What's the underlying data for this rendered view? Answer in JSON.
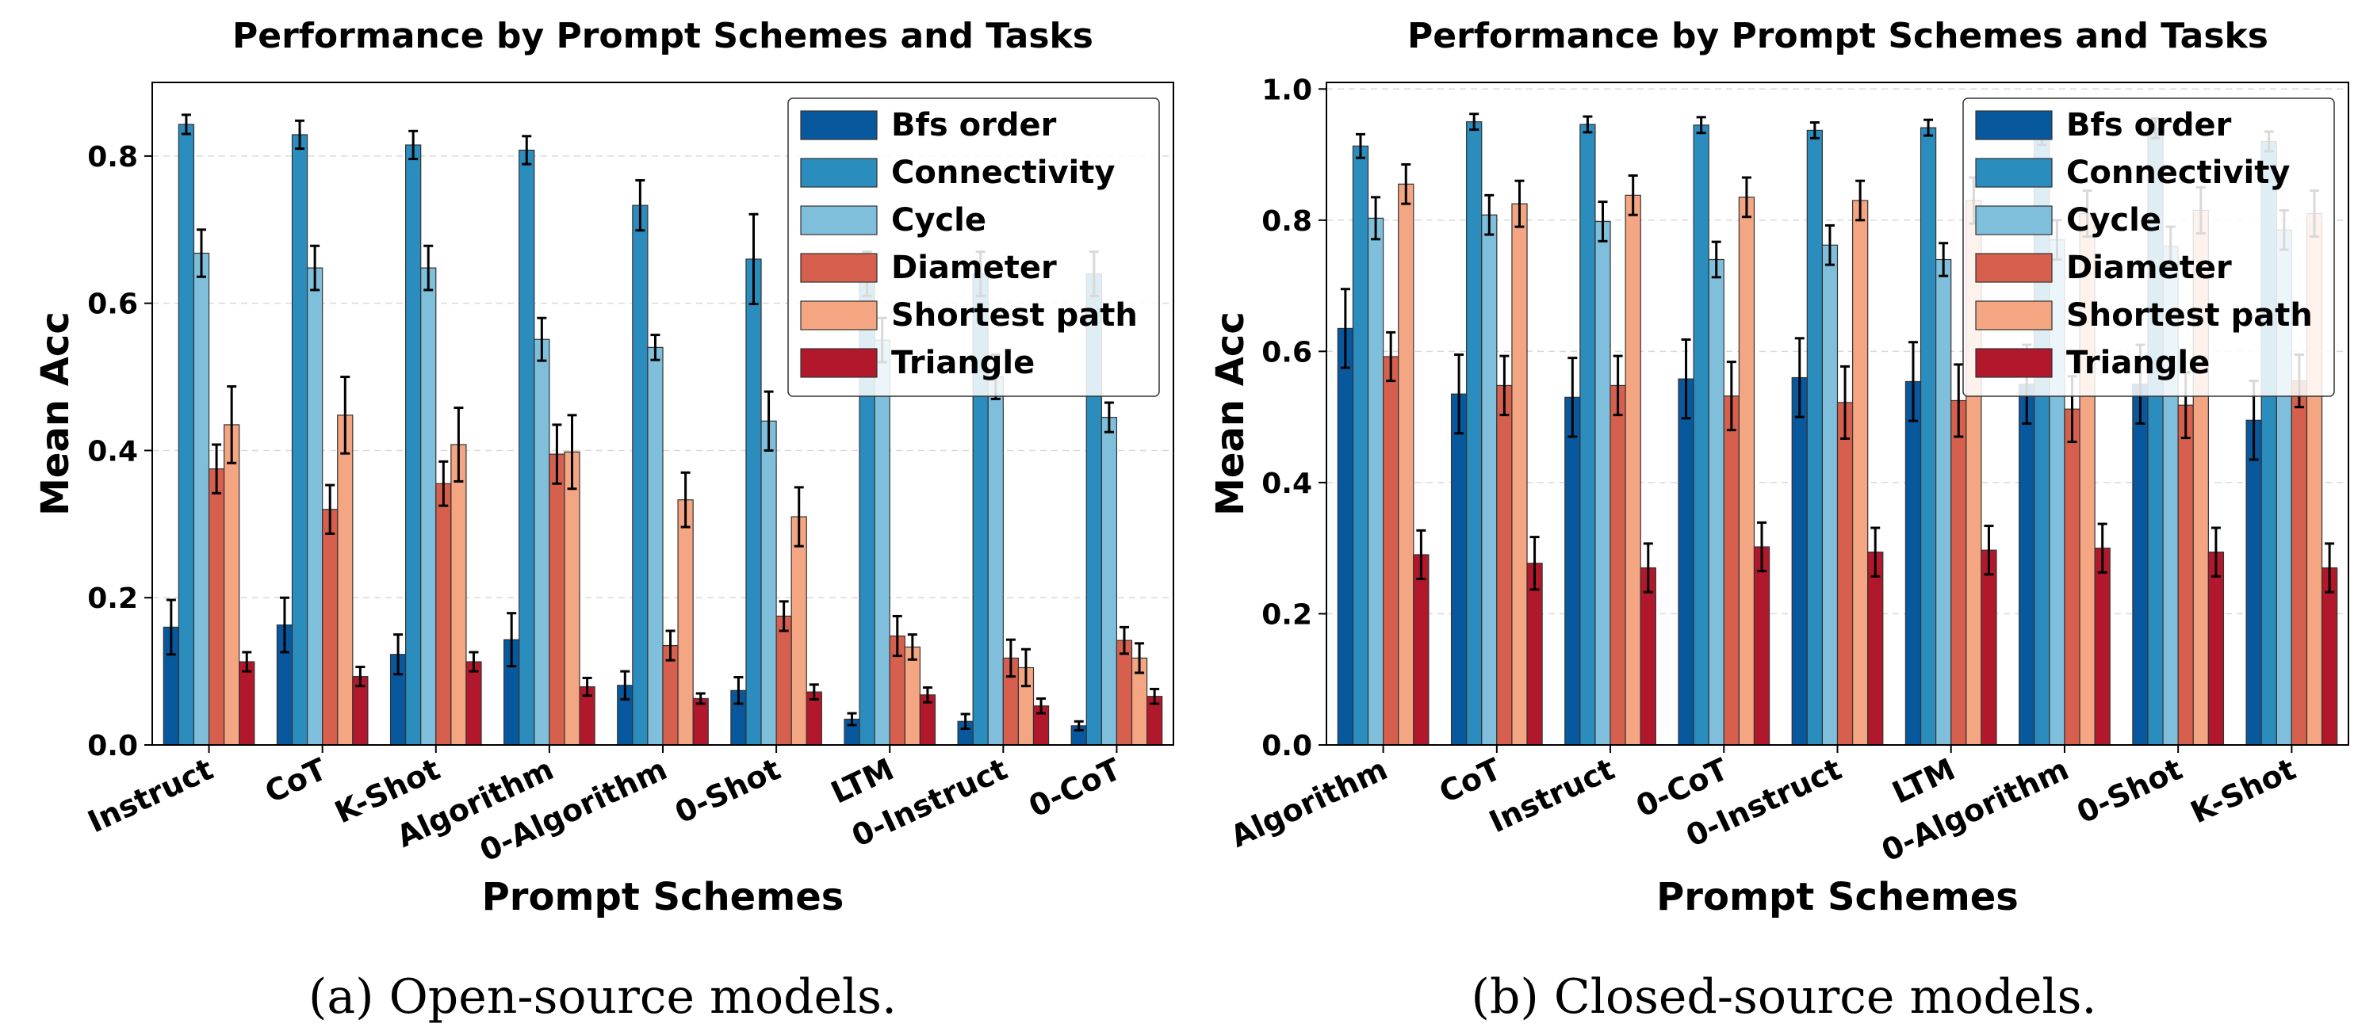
{
  "chart_data": [
    {
      "type": "bar",
      "title": "Performance by Prompt Schemes and Tasks",
      "xlabel": "Prompt Schemes",
      "ylabel": "Mean Acc",
      "ylim": [
        0,
        0.9
      ],
      "yticks": [
        0.0,
        0.2,
        0.4,
        0.6,
        0.8
      ],
      "ytick_labels": [
        "0.0",
        "0.2",
        "0.4",
        "0.6",
        "0.8"
      ],
      "grid": "horizontal dashed",
      "legend_position": "top-right",
      "caption": "(a) Open-source models.",
      "categories": [
        "Instruct",
        "CoT",
        "K-Shot",
        "Algorithm",
        "0-Algorithm",
        "0-Shot",
        "LTM",
        "0-Instruct",
        "0-CoT"
      ],
      "series": [
        {
          "name": "Bfs order",
          "color": "#08589e",
          "values": [
            0.16,
            0.163,
            0.123,
            0.143,
            0.081,
            0.074,
            0.035,
            0.032,
            0.026
          ],
          "errors": [
            0.037,
            0.037,
            0.027,
            0.036,
            0.019,
            0.018,
            0.008,
            0.01,
            0.006
          ]
        },
        {
          "name": "Connectivity",
          "color": "#2b8cbe",
          "values": [
            0.843,
            0.829,
            0.815,
            0.808,
            0.733,
            0.66,
            0.64,
            0.64,
            0.64
          ],
          "errors": [
            0.013,
            0.019,
            0.019,
            0.019,
            0.034,
            0.061,
            0.03,
            0.03,
            0.03
          ]
        },
        {
          "name": "Cycle",
          "color": "#7fbfdb",
          "values": [
            0.668,
            0.648,
            0.648,
            0.551,
            0.54,
            0.44,
            0.55,
            0.5,
            0.445
          ],
          "errors": [
            0.032,
            0.03,
            0.03,
            0.029,
            0.017,
            0.04,
            0.03,
            0.03,
            0.02
          ]
        },
        {
          "name": "Diameter",
          "color": "#d6604d",
          "values": [
            0.375,
            0.32,
            0.355,
            0.395,
            0.135,
            0.175,
            0.148,
            0.118,
            0.142
          ],
          "errors": [
            0.033,
            0.033,
            0.03,
            0.04,
            0.02,
            0.02,
            0.027,
            0.025,
            0.018
          ]
        },
        {
          "name": "Shortest path",
          "color": "#f4a582",
          "values": [
            0.435,
            0.448,
            0.408,
            0.398,
            0.333,
            0.31,
            0.133,
            0.105,
            0.118
          ],
          "errors": [
            0.052,
            0.052,
            0.05,
            0.05,
            0.037,
            0.04,
            0.017,
            0.025,
            0.02
          ]
        },
        {
          "name": "Triangle",
          "color": "#b2182b",
          "values": [
            0.113,
            0.093,
            0.113,
            0.079,
            0.063,
            0.072,
            0.068,
            0.053,
            0.066
          ],
          "errors": [
            0.013,
            0.013,
            0.013,
            0.012,
            0.007,
            0.01,
            0.01,
            0.01,
            0.01
          ]
        }
      ]
    },
    {
      "type": "bar",
      "title": "Performance by Prompt Schemes and Tasks",
      "xlabel": "Prompt Schemes",
      "ylabel": "Mean Acc",
      "ylim": [
        0,
        1.01
      ],
      "yticks": [
        0.0,
        0.2,
        0.4,
        0.6,
        0.8,
        1.0
      ],
      "ytick_labels": [
        "0.0",
        "0.2",
        "0.4",
        "0.6",
        "0.8",
        "1.0"
      ],
      "grid": "horizontal dashed",
      "legend_position": "top-right",
      "caption": "(b) Closed-source models.",
      "categories": [
        "Algorithm",
        "CoT",
        "Instruct",
        "0-CoT",
        "0-Instruct",
        "LTM",
        "0-Algorithm",
        "0-Shot",
        "K-Shot"
      ],
      "series": [
        {
          "name": "Bfs order",
          "color": "#08589e",
          "values": [
            0.635,
            0.535,
            0.53,
            0.558,
            0.56,
            0.554,
            0.55,
            0.55,
            0.495
          ],
          "errors": [
            0.06,
            0.06,
            0.06,
            0.06,
            0.06,
            0.06,
            0.06,
            0.06,
            0.06
          ]
        },
        {
          "name": "Connectivity",
          "color": "#2b8cbe",
          "values": [
            0.913,
            0.95,
            0.946,
            0.945,
            0.937,
            0.941,
            0.93,
            0.94,
            0.92
          ],
          "errors": [
            0.018,
            0.012,
            0.012,
            0.012,
            0.012,
            0.012,
            0.015,
            0.015,
            0.015
          ]
        },
        {
          "name": "Cycle",
          "color": "#7fbfdb",
          "values": [
            0.803,
            0.808,
            0.798,
            0.74,
            0.762,
            0.74,
            0.77,
            0.76,
            0.785
          ],
          "errors": [
            0.032,
            0.03,
            0.03,
            0.027,
            0.03,
            0.025,
            0.03,
            0.03,
            0.03
          ]
        },
        {
          "name": "Diameter",
          "color": "#d6604d",
          "values": [
            0.592,
            0.548,
            0.548,
            0.532,
            0.522,
            0.525,
            0.512,
            0.518,
            0.555
          ],
          "errors": [
            0.037,
            0.045,
            0.045,
            0.052,
            0.055,
            0.055,
            0.05,
            0.05,
            0.04
          ]
        },
        {
          "name": "Shortest path",
          "color": "#f4a582",
          "values": [
            0.855,
            0.825,
            0.838,
            0.835,
            0.83,
            0.83,
            0.81,
            0.815,
            0.81
          ],
          "errors": [
            0.03,
            0.035,
            0.03,
            0.03,
            0.03,
            0.035,
            0.035,
            0.035,
            0.035
          ]
        },
        {
          "name": "Triangle",
          "color": "#b2182b",
          "values": [
            0.29,
            0.277,
            0.27,
            0.302,
            0.294,
            0.297,
            0.3,
            0.294,
            0.27
          ],
          "errors": [
            0.037,
            0.04,
            0.037,
            0.037,
            0.037,
            0.037,
            0.037,
            0.037,
            0.037
          ]
        }
      ]
    }
  ]
}
